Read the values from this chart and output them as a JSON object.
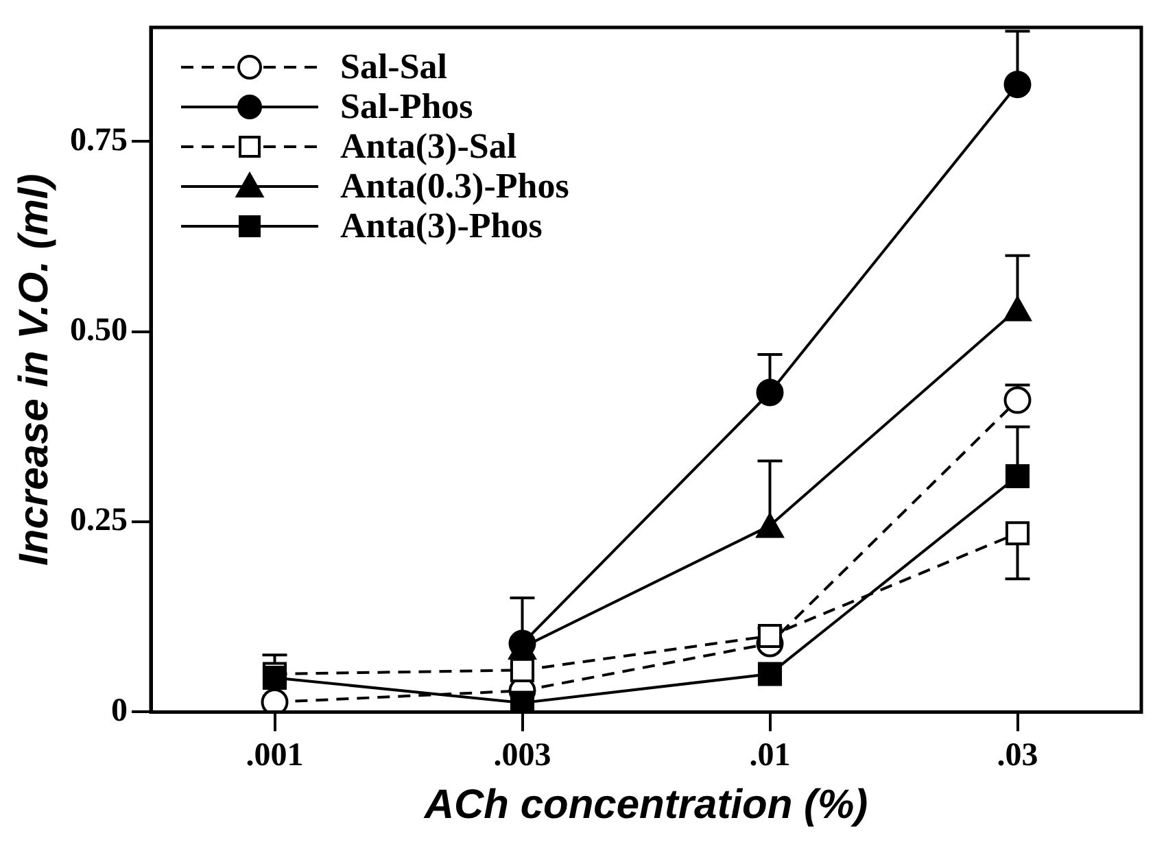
{
  "chart_data": {
    "type": "line",
    "xlabel": "ACh concentration (%)",
    "ylabel": "Increase in V.O. (ml)",
    "categories": [
      ".001",
      ".003",
      ".01",
      ".03"
    ],
    "ylim": [
      0,
      0.9
    ],
    "yticks": [
      {
        "value": 0,
        "label": "0"
      },
      {
        "value": 0.25,
        "label": "0.25"
      },
      {
        "value": 0.5,
        "label": "0.50"
      },
      {
        "value": 0.75,
        "label": "0.75"
      }
    ],
    "grid": false,
    "legend": "top left",
    "series": [
      {
        "name": "Sal-Sal",
        "color": "#000000",
        "marker": "circle",
        "line_style": "dashed",
        "values": [
          0.013,
          0.028,
          0.09,
          0.41
        ],
        "errors": [
          null,
          null,
          [
            0.09,
            0.11
          ],
          [
            0.41,
            0.43
          ]
        ]
      },
      {
        "name": "Sal-Phos",
        "color": "#000000",
        "marker": "circle",
        "line_style": "solid",
        "values": [
          null,
          0.09,
          0.42,
          0.825
        ],
        "errors": [
          null,
          [
            0.09,
            0.15
          ],
          [
            0.42,
            0.47
          ],
          [
            0.825,
            0.895
          ]
        ]
      },
      {
        "name": "Anta(3)-Sal",
        "color": "#000000",
        "marker": "square",
        "line_style": "dashed",
        "values": [
          0.05,
          0.055,
          0.1,
          0.235
        ],
        "errors": [
          null,
          null,
          null,
          [
            0.175,
            0.235
          ]
        ]
      },
      {
        "name": "Anta(0.3)-Phos",
        "color": "#000000",
        "marker": "triangle",
        "line_style": "solid",
        "values": [
          null,
          0.085,
          0.245,
          0.53
        ],
        "errors": [
          null,
          null,
          [
            0.245,
            0.33
          ],
          [
            0.53,
            0.6
          ]
        ]
      },
      {
        "name": "Anta(3)-Phos",
        "color": "#000000",
        "marker": "square",
        "line_style": "solid",
        "values": [
          0.045,
          0.012,
          0.05,
          0.31
        ],
        "errors": [
          [
            0.045,
            0.075
          ],
          null,
          null,
          [
            0.31,
            0.375
          ]
        ]
      }
    ]
  }
}
